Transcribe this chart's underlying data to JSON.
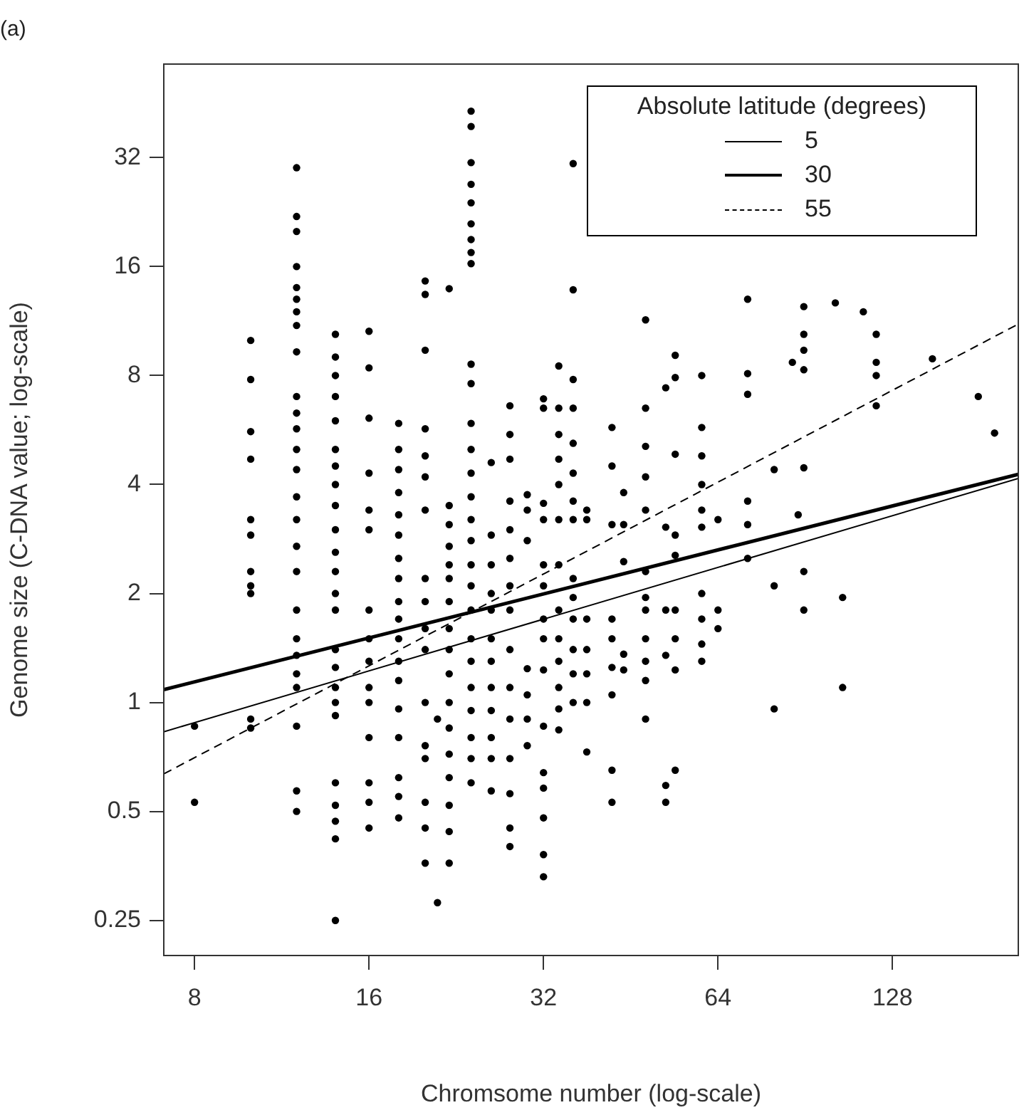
{
  "chart_data": {
    "type": "scatter",
    "title": "(a)",
    "xlabel": "Chromsome number (log-scale)",
    "ylabel": "Genome size (C-DNA value; log-scale)",
    "legend_title": "Absolute latitude (degrees)",
    "legend": "top right",
    "log": "xy",
    "marker": "circle",
    "xlim": [
      7.08,
      211
    ],
    "xticks": [
      8,
      16,
      32,
      64,
      128
    ],
    "ylim": [
      0.2,
      58
    ],
    "yticks": [
      0.25,
      0.5,
      1,
      2,
      4,
      8,
      16,
      32
    ],
    "series": [
      {
        "color": "#000000",
        "x": [
          8,
          8,
          10,
          10,
          10,
          10,
          10,
          10,
          10,
          10,
          10,
          10,
          10,
          12,
          12,
          12,
          12,
          12,
          12,
          12,
          12,
          12,
          12,
          12,
          12,
          12,
          12,
          12,
          12,
          12,
          12,
          12,
          12,
          12,
          12,
          12,
          12,
          12,
          12,
          14,
          14,
          14,
          14,
          14,
          14,
          14,
          14,
          14,
          14,
          14,
          14,
          14,
          14,
          14,
          14,
          14,
          14,
          14,
          14,
          14,
          14,
          14,
          14,
          16,
          16,
          16,
          16,
          16,
          16,
          16,
          16,
          16,
          16,
          16,
          16,
          16,
          16,
          16,
          18,
          18,
          18,
          18,
          18,
          18,
          18,
          18,
          18,
          18,
          18,
          18,
          18,
          18,
          18,
          18,
          18,
          18,
          20,
          20,
          20,
          20,
          20,
          20,
          20,
          20,
          20,
          20,
          20,
          20,
          20,
          20,
          20,
          20,
          20,
          21,
          21,
          22,
          22,
          22,
          22,
          22,
          22,
          22,
          22,
          22,
          22,
          22,
          22,
          22,
          22,
          22,
          22,
          22,
          24,
          24,
          24,
          24,
          24,
          24,
          24,
          24,
          24,
          24,
          24,
          24,
          24,
          24,
          24,
          24,
          24,
          24,
          24,
          24,
          24,
          24,
          24,
          24,
          24,
          24,
          24,
          26,
          26,
          26,
          26,
          26,
          26,
          26,
          26,
          26,
          26,
          26,
          26,
          28,
          28,
          28,
          28,
          28,
          28,
          28,
          28,
          28,
          28,
          28,
          28,
          28,
          28,
          28,
          30,
          30,
          30,
          30,
          30,
          30,
          30,
          32,
          32,
          32,
          32,
          32,
          32,
          32,
          32,
          32,
          32,
          32,
          32,
          32,
          32,
          32,
          34,
          34,
          34,
          34,
          34,
          34,
          34,
          34,
          34,
          34,
          34,
          34,
          34,
          36,
          36,
          36,
          36,
          36,
          36,
          36,
          36,
          36,
          36,
          36,
          36,
          36,
          36,
          38,
          38,
          38,
          38,
          38,
          38,
          38,
          42,
          42,
          42,
          42,
          42,
          42,
          42,
          42,
          42,
          44,
          44,
          44,
          44,
          44,
          48,
          48,
          48,
          48,
          48,
          48,
          48,
          48,
          48,
          48,
          48,
          48,
          52,
          52,
          52,
          52,
          52,
          52,
          54,
          54,
          54,
          54,
          54,
          54,
          54,
          54,
          54,
          60,
          60,
          60,
          60,
          60,
          60,
          60,
          60,
          60,
          60,
          64,
          64,
          64,
          72,
          72,
          72,
          72,
          72,
          72,
          80,
          80,
          80,
          86,
          88,
          90,
          90,
          90,
          90,
          90,
          90,
          90,
          102,
          105,
          105,
          114,
          120,
          120,
          120,
          120,
          150,
          180,
          192
        ],
        "values": [
          0.86,
          0.53,
          10,
          7.8,
          5.6,
          4.7,
          3.2,
          2.9,
          2.3,
          2.1,
          2.0,
          0.9,
          0.85,
          30,
          22,
          20,
          16,
          14,
          13,
          12,
          11,
          9.3,
          7,
          6.3,
          5.7,
          5,
          4.4,
          3.7,
          3.2,
          2.7,
          2.3,
          1.8,
          1.5,
          1.35,
          1.2,
          1.1,
          0.86,
          0.57,
          0.5,
          10.4,
          9,
          8,
          7,
          6,
          5,
          4.5,
          4,
          3.5,
          3,
          2.6,
          2.3,
          2,
          1.8,
          1.4,
          1.25,
          1.1,
          1.0,
          0.92,
          0.6,
          0.52,
          0.47,
          0.42,
          0.25,
          10.6,
          8.4,
          6.1,
          4.3,
          3.4,
          3.0,
          1.8,
          1.5,
          1.3,
          1.1,
          1.0,
          0.8,
          0.6,
          0.53,
          0.45,
          5.9,
          5,
          4.4,
          3.8,
          3.3,
          2.9,
          2.5,
          2.2,
          1.9,
          1.7,
          1.5,
          1.3,
          1.15,
          0.96,
          0.8,
          0.62,
          0.55,
          0.48,
          14.6,
          13.4,
          9.4,
          5.7,
          4.8,
          4.2,
          3.4,
          2.2,
          1.9,
          1.6,
          1.4,
          1.0,
          0.76,
          0.7,
          0.53,
          0.45,
          0.36,
          0.9,
          0.28,
          13.9,
          3.5,
          3.1,
          2.7,
          2.4,
          2.2,
          1.9,
          1.6,
          1.4,
          1.2,
          1.0,
          0.85,
          0.72,
          0.62,
          0.52,
          0.44,
          0.36,
          43,
          39,
          31,
          27,
          24,
          21,
          19,
          17.5,
          16.3,
          8.6,
          7.6,
          5.9,
          5,
          4.3,
          3.7,
          3.2,
          2.8,
          2.4,
          2.1,
          1.8,
          1.5,
          1.3,
          1.1,
          0.95,
          0.8,
          0.7,
          0.6,
          4.6,
          2.9,
          2.4,
          2.0,
          1.8,
          1.5,
          1.3,
          1.1,
          0.95,
          0.8,
          0.7,
          0.57,
          6.6,
          5.5,
          4.7,
          3.6,
          3.0,
          2.5,
          2.1,
          1.8,
          1.4,
          1.1,
          0.9,
          0.7,
          0.56,
          0.45,
          0.4,
          3.75,
          3.4,
          2.8,
          1.24,
          1.05,
          0.9,
          0.76,
          6.9,
          6.5,
          3.55,
          3.2,
          2.4,
          2.1,
          1.7,
          1.5,
          1.23,
          0.86,
          0.64,
          0.58,
          0.48,
          0.38,
          0.33,
          8.5,
          6.5,
          5.5,
          4.7,
          4.0,
          3.2,
          2.4,
          1.8,
          1.5,
          1.3,
          1.1,
          0.96,
          0.84,
          30.8,
          13.8,
          7.8,
          6.5,
          5.2,
          4.3,
          3.6,
          3.2,
          2.2,
          1.95,
          1.7,
          1.4,
          1.2,
          1.0,
          3.4,
          3.2,
          1.7,
          1.4,
          1.2,
          1.0,
          0.73,
          5.75,
          4.5,
          3.1,
          1.7,
          1.5,
          1.25,
          1.05,
          0.65,
          0.53,
          3.8,
          3.1,
          2.45,
          1.36,
          1.23,
          11.4,
          6.5,
          5.1,
          4.2,
          3.4,
          2.3,
          1.95,
          1.8,
          1.5,
          1.3,
          1.15,
          0.9,
          7.4,
          3.05,
          1.8,
          1.35,
          0.59,
          0.53,
          9.1,
          7.9,
          4.85,
          2.9,
          2.55,
          1.8,
          1.5,
          1.23,
          0.65,
          8.0,
          5.75,
          4.8,
          4.0,
          3.4,
          3.05,
          2.0,
          1.7,
          1.45,
          1.3,
          3.2,
          1.8,
          1.6,
          13,
          8.1,
          7.1,
          3.6,
          3.1,
          2.5,
          4.4,
          2.1,
          0.96,
          8.7,
          3.3,
          12.4,
          10.4,
          9.4,
          8.3,
          4.45,
          2.3,
          1.8,
          12.7,
          1.95,
          1.1,
          12.0,
          10.4,
          8.7,
          8.0,
          6.6,
          8.9,
          7.0,
          5.55
        ]
      },
      {
        "type": "line",
        "name": "5",
        "color": "#000000",
        "marker": "none",
        "line_style": "solid",
        "x": [
          7.08,
          211
        ],
        "values": [
          0.83,
          4.16
        ]
      },
      {
        "type": "line",
        "name": "30",
        "color": "#000000",
        "marker": "none",
        "line_style": "solid",
        "x": [
          7.08,
          211
        ],
        "values": [
          1.085,
          4.27
        ]
      },
      {
        "type": "line",
        "name": "55",
        "color": "#000000",
        "marker": "none",
        "line_style": "dashed",
        "x": [
          7.08,
          211
        ],
        "values": [
          0.635,
          11.1
        ]
      }
    ]
  }
}
